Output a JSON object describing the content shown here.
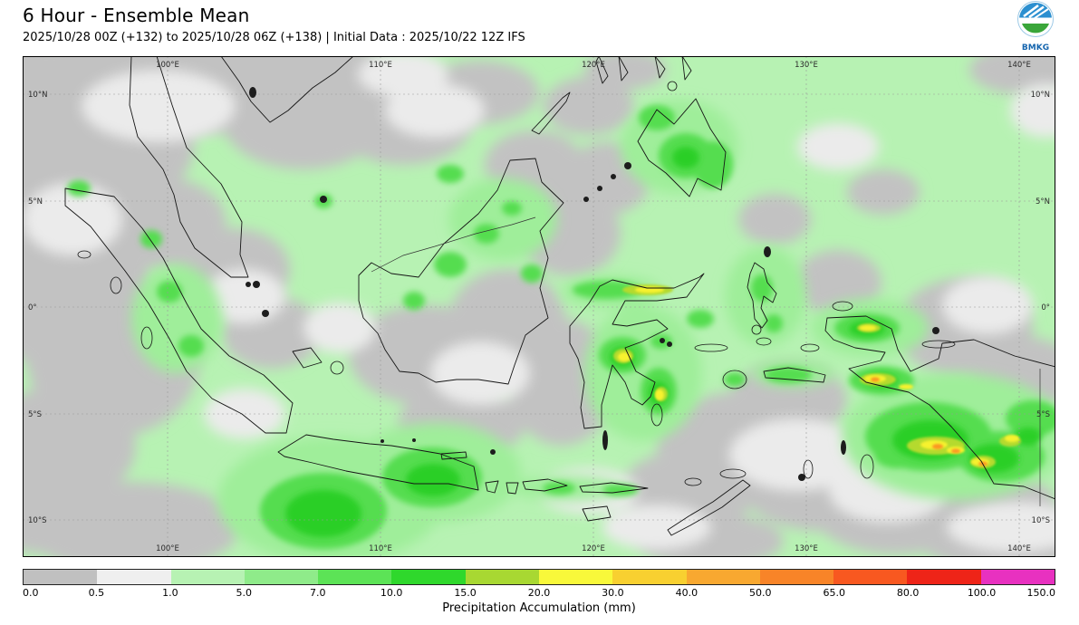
{
  "header": {
    "title": "6 Hour - Ensemble Mean",
    "subtitle": "2025/10/28 00Z (+132) to 2025/10/28 06Z (+138) | Initial Data : 2025/10/22 12Z IFS",
    "logo": "BMKG"
  },
  "map": {
    "lat_labels": [
      "10°N",
      "5°N",
      "0°",
      "5°S",
      "10°S"
    ],
    "lon_labels": [
      "100°E",
      "110°E",
      "120°E",
      "130°E",
      "140°E"
    ]
  },
  "legend": {
    "label": "Precipitation Accumulation (mm)",
    "ticks": [
      "0.0",
      "0.5",
      "1.0",
      "5.0",
      "7.0",
      "10.0",
      "15.0",
      "20.0",
      "30.0",
      "40.0",
      "50.0",
      "65.0",
      "80.0",
      "100.0",
      "150.0"
    ],
    "colors": [
      "#c0c0c0",
      "#efefef",
      "#b7f2b3",
      "#8feb8a",
      "#5ce356",
      "#2fd82c",
      "#a8d832",
      "#f8f83a",
      "#f8d030",
      "#f8a830",
      "#f88428",
      "#f85820",
      "#ee2418",
      "#e831c0"
    ]
  },
  "chart_data": {
    "type": "heatmap",
    "title": "6 Hour - Ensemble Mean",
    "colorbar_label": "Precipitation Accumulation (mm)",
    "levels_mm": [
      0.0,
      0.5,
      1.0,
      5.0,
      7.0,
      10.0,
      15.0,
      20.0,
      30.0,
      40.0,
      50.0,
      65.0,
      80.0,
      100.0,
      150.0
    ],
    "lon_ticks_deg_e": [
      100,
      110,
      120,
      130,
      140
    ],
    "lat_ticks_deg": [
      "10N",
      "5N",
      "0",
      "5S",
      "10S"
    ]
  }
}
